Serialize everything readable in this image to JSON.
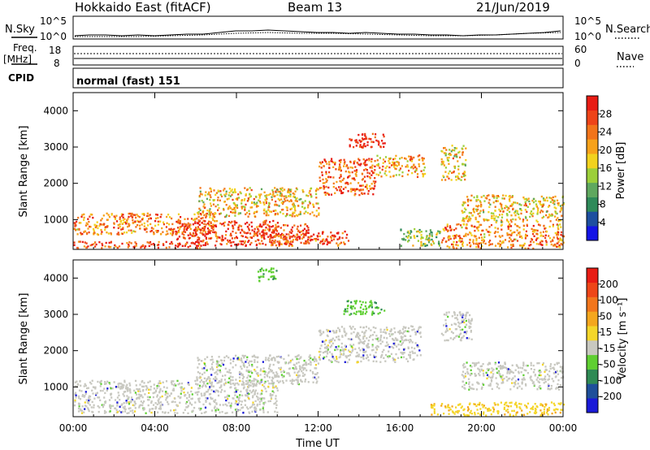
{
  "header": {
    "station": "Hokkaido East (fitACF)",
    "beam": "Beam 13",
    "date": "21/Jun/2019"
  },
  "strip_panels": {
    "nsky_label": "N.Sky",
    "nsky_ticks": [
      "10^5",
      "10^0"
    ],
    "nsearch_label": "N.Search",
    "freq_label_line1": "Freq.",
    "freq_label_line2": "[MHz]",
    "freq_ticks": [
      "18",
      "8"
    ],
    "nave_ticks": [
      "60",
      "0"
    ],
    "nave_label": "Nave",
    "cpid_label": "CPID",
    "cpid_value": "normal (fast) 151"
  },
  "chart_data": [
    {
      "type": "heatmap",
      "name": "power",
      "title": "",
      "xlabel": "",
      "ylabel": "Slant Range [km]",
      "x_ticks": [
        "00:00",
        "04:00",
        "08:00",
        "12:00",
        "16:00",
        "20:00",
        "00:00"
      ],
      "x_range_hours": [
        0,
        24
      ],
      "y_ticks": [
        1000,
        2000,
        3000,
        4000
      ],
      "ylim": [
        180,
        4500
      ],
      "colorbar": {
        "label": "Power [dB]",
        "ticks": [
          4,
          8,
          12,
          16,
          20,
          24,
          28
        ],
        "colors": [
          "#1414e6",
          "#1e4fa0",
          "#2e8a5a",
          "#5fa85f",
          "#9ccf3a",
          "#f2d21e",
          "#f7a21a",
          "#f2741a",
          "#ee4418",
          "#e81c14"
        ]
      },
      "regions": [
        {
          "t0": 0.0,
          "t1": 6.5,
          "r0": 230,
          "r1": 420,
          "level": 0.9
        },
        {
          "t0": 0.0,
          "t1": 7.0,
          "r0": 600,
          "r1": 1200,
          "level": 0.72
        },
        {
          "t0": 5.0,
          "t1": 10.0,
          "r0": 300,
          "r1": 1000,
          "level": 0.88
        },
        {
          "t0": 9.0,
          "t1": 11.5,
          "r0": 300,
          "r1": 900,
          "level": 0.85
        },
        {
          "t0": 10.0,
          "t1": 13.5,
          "r0": 300,
          "r1": 700,
          "level": 0.82
        },
        {
          "t0": 6.0,
          "t1": 12.0,
          "r0": 1100,
          "r1": 1900,
          "level": 0.6
        },
        {
          "t0": 12.0,
          "t1": 14.8,
          "r0": 1700,
          "r1": 2700,
          "level": 0.82
        },
        {
          "t0": 13.5,
          "t1": 15.3,
          "r0": 3000,
          "r1": 3400,
          "level": 0.95
        },
        {
          "t0": 14.8,
          "t1": 17.2,
          "r0": 2200,
          "r1": 2800,
          "level": 0.65
        },
        {
          "t0": 16.0,
          "t1": 18.0,
          "r0": 300,
          "r1": 800,
          "level": 0.45
        },
        {
          "t0": 18.0,
          "t1": 19.2,
          "r0": 2100,
          "r1": 3100,
          "level": 0.6
        },
        {
          "t0": 19.0,
          "t1": 24.0,
          "r0": 950,
          "r1": 1700,
          "level": 0.6
        },
        {
          "t0": 18.0,
          "t1": 24.0,
          "r0": 230,
          "r1": 900,
          "level": 0.72
        }
      ]
    },
    {
      "type": "heatmap",
      "name": "velocity",
      "title": "",
      "xlabel": "Time UT",
      "ylabel": "Slant Range [km]",
      "x_ticks": [
        "00:00",
        "04:00",
        "08:00",
        "12:00",
        "16:00",
        "20:00",
        "00:00"
      ],
      "x_range_hours": [
        0,
        24
      ],
      "y_ticks": [
        1000,
        2000,
        3000,
        4000
      ],
      "ylim": [
        180,
        4500
      ],
      "colorbar": {
        "label": "Velocity [m s⁻¹]",
        "ticks": [
          200,
          100,
          50,
          15,
          -15,
          -50,
          -100,
          -200
        ],
        "colors": [
          "#1a1ad8",
          "#1e4f9a",
          "#2f8a55",
          "#5fcf32",
          "#c8c8c0",
          "#f4d62a",
          "#f4a71e",
          "#f2761c",
          "#ee4618",
          "#e81c14"
        ]
      },
      "regions": [
        {
          "t0": 0.0,
          "t1": 10.0,
          "r0": 300,
          "r1": 1200,
          "level": 0.0
        },
        {
          "t0": 6.0,
          "t1": 12.0,
          "r0": 1100,
          "r1": 1900,
          "level": 0.0
        },
        {
          "t0": 12.0,
          "t1": 17.0,
          "r0": 1700,
          "r1": 2700,
          "level": 0.0
        },
        {
          "t0": 9.0,
          "t1": 10.0,
          "r0": 3900,
          "r1": 4300,
          "level": 40
        },
        {
          "t0": 13.2,
          "t1": 15.3,
          "r0": 3000,
          "r1": 3400,
          "level": 40
        },
        {
          "t0": 18.0,
          "t1": 19.5,
          "r0": 2300,
          "r1": 3100,
          "level": 0.0
        },
        {
          "t0": 19.0,
          "t1": 24.0,
          "r0": 950,
          "r1": 1700,
          "level": 0.0
        },
        {
          "t0": 17.5,
          "t1": 24.0,
          "r0": 230,
          "r1": 600,
          "level": -45
        }
      ]
    }
  ]
}
